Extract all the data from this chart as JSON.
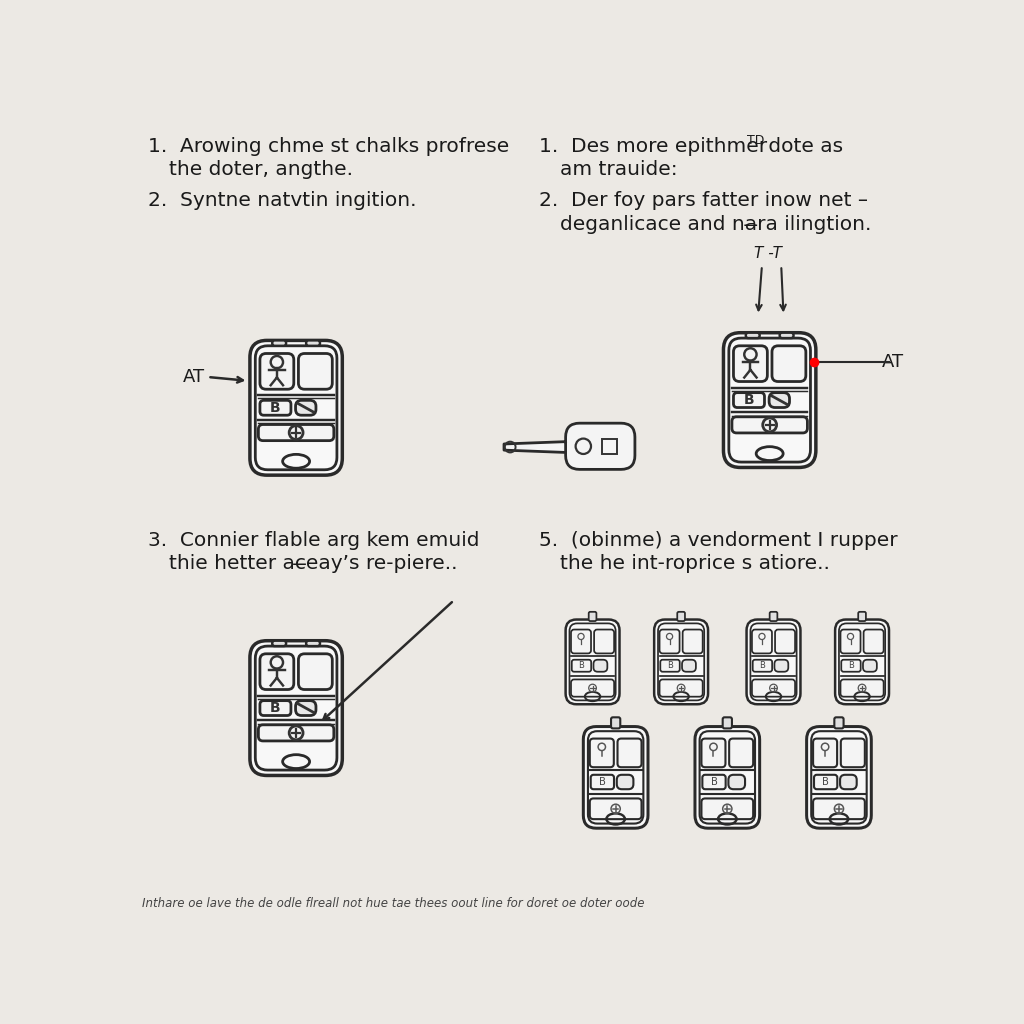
{
  "bg_color": "#ece9e4",
  "text_color": "#1a1a1a",
  "footer": "Inthare oe lave the de odle flreall not hue tae thees oout line for doret oe doter oode",
  "panel1_lines": [
    "1.  Arowing chme st chalks profrese",
    "     the doter, angthe.",
    "2.  Syntne natvtin ingition."
  ],
  "panel2_line1a": "1.  Des more epithmer ",
  "panel2_line1b": "TD",
  "panel2_line1c": " dote as",
  "panel2_line2": "     am trauide:",
  "panel2_line3": "2.  Der foy pars fatter inow net –",
  "panel2_line4": "     deganlicace and na̶̶ra ilingtion.",
  "panel3_lines": [
    "3.  Connier flable arg kem emuid",
    "     thie hetter ac̶̶eay’s re-piere.."
  ],
  "panel5_lines": [
    "5.  (obinme) a vendorment I rupper",
    "     the he int-roprice s atiore.."
  ]
}
